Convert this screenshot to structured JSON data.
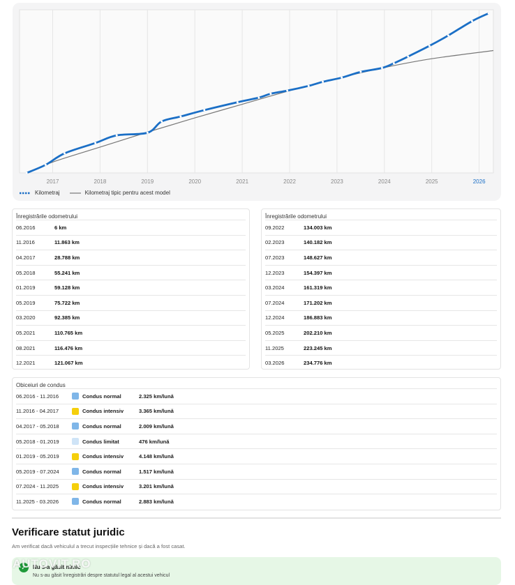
{
  "chart_data": {
    "type": "line",
    "x_ticks": [
      "2017",
      "2018",
      "2019",
      "2020",
      "2021",
      "2022",
      "2023",
      "2024",
      "2025",
      "2026"
    ],
    "highlight_tick": "2026",
    "xlim": [
      2016.3,
      2026.3
    ],
    "ylim": [
      0,
      240000
    ],
    "grid": true,
    "series": [
      {
        "name": "Kilometraj",
        "style": "dotted-solid",
        "color": "#1b6fc6",
        "points": [
          [
            2016.45,
            6
          ],
          [
            2016.85,
            11863
          ],
          [
            2017.25,
            28788
          ],
          [
            2017.9,
            44000
          ],
          [
            2018.35,
            55241
          ],
          [
            2019.0,
            59128
          ],
          [
            2019.3,
            75722
          ],
          [
            2019.7,
            83000
          ],
          [
            2020.2,
            92385
          ],
          [
            2020.9,
            104000
          ],
          [
            2021.35,
            110765
          ],
          [
            2021.6,
            116476
          ],
          [
            2021.95,
            121067
          ],
          [
            2022.4,
            128000
          ],
          [
            2022.7,
            134003
          ],
          [
            2023.1,
            140182
          ],
          [
            2023.5,
            148627
          ],
          [
            2023.95,
            154397
          ],
          [
            2024.2,
            161319
          ],
          [
            2024.5,
            171202
          ],
          [
            2024.95,
            186883
          ],
          [
            2025.35,
            202210
          ],
          [
            2025.85,
            223245
          ],
          [
            2026.2,
            234776
          ]
        ]
      },
      {
        "name": "Kilometraj tipic pentru acest model",
        "style": "solid",
        "color": "#777777",
        "points": [
          [
            2016.45,
            6
          ],
          [
            2017.0,
            16000
          ],
          [
            2018.0,
            38000
          ],
          [
            2019.0,
            60000
          ],
          [
            2020.0,
            81000
          ],
          [
            2021.0,
            101000
          ],
          [
            2022.0,
            121000
          ],
          [
            2023.0,
            139000
          ],
          [
            2024.0,
            155000
          ],
          [
            2025.0,
            168000
          ],
          [
            2026.3,
            180000
          ]
        ]
      }
    ]
  },
  "odometer": {
    "title": "Înregistrările odometrului",
    "left": [
      {
        "date": "06.2016",
        "km": "6 km"
      },
      {
        "date": "11.2016",
        "km": "11.863 km"
      },
      {
        "date": "04.2017",
        "km": "28.788 km"
      },
      {
        "date": "05.2018",
        "km": "55.241 km"
      },
      {
        "date": "01.2019",
        "km": "59.128 km"
      },
      {
        "date": "05.2019",
        "km": "75.722 km"
      },
      {
        "date": "03.2020",
        "km": "92.385 km"
      },
      {
        "date": "05.2021",
        "km": "110.765 km"
      },
      {
        "date": "08.2021",
        "km": "116.476 km"
      },
      {
        "date": "12.2021",
        "km": "121.067 km"
      }
    ],
    "right": [
      {
        "date": "09.2022",
        "km": "134.003 km"
      },
      {
        "date": "02.2023",
        "km": "140.182 km"
      },
      {
        "date": "07.2023",
        "km": "148.627 km"
      },
      {
        "date": "12.2023",
        "km": "154.397 km"
      },
      {
        "date": "03.2024",
        "km": "161.319 km"
      },
      {
        "date": "07.2024",
        "km": "171.202 km"
      },
      {
        "date": "12.2024",
        "km": "186.883 km"
      },
      {
        "date": "05.2025",
        "km": "202.210 km"
      },
      {
        "date": "11.2025",
        "km": "223.245 km"
      },
      {
        "date": "03.2026",
        "km": "234.776 km"
      }
    ]
  },
  "habits": {
    "title": "Obiceiuri de condus",
    "colors": {
      "normal": "#7fb6e8",
      "intensiv": "#f5cf0c",
      "limitat": "#cfe4f7"
    },
    "rows": [
      {
        "period": "06.2016 - 11.2016",
        "type": "Condus normal",
        "kind": "normal",
        "rate": "2.325 km/lună"
      },
      {
        "period": "11.2016 - 04.2017",
        "type": "Condus intensiv",
        "kind": "intensiv",
        "rate": "3.365 km/lună"
      },
      {
        "period": "04.2017 - 05.2018",
        "type": "Condus normal",
        "kind": "normal",
        "rate": "2.009 km/lună"
      },
      {
        "period": "05.2018 - 01.2019",
        "type": "Condus limitat",
        "kind": "limitat",
        "rate": "476 km/lună"
      },
      {
        "period": "01.2019 - 05.2019",
        "type": "Condus intensiv",
        "kind": "intensiv",
        "rate": "4.148 km/lună"
      },
      {
        "period": "05.2019 - 07.2024",
        "type": "Condus normal",
        "kind": "normal",
        "rate": "1.517 km/lună"
      },
      {
        "period": "07.2024 - 11.2025",
        "type": "Condus intensiv",
        "kind": "intensiv",
        "rate": "3.201 km/lună"
      },
      {
        "period": "11.2025 - 03.2026",
        "type": "Condus normal",
        "kind": "normal",
        "rate": "2.883 km/lună"
      }
    ]
  },
  "legal": {
    "title": "Verificare statut juridic",
    "subtitle": "Am verificat dacă vehiculul a trecut inspecțiile tehnice și dacă a fost casat.",
    "box_title": "Nu s-a găsit nimic",
    "box_text": "Nu s-au găsit înregistrări despre statutul legal al acestui vehicul",
    "watermark": "AUTOVIT.RO"
  }
}
